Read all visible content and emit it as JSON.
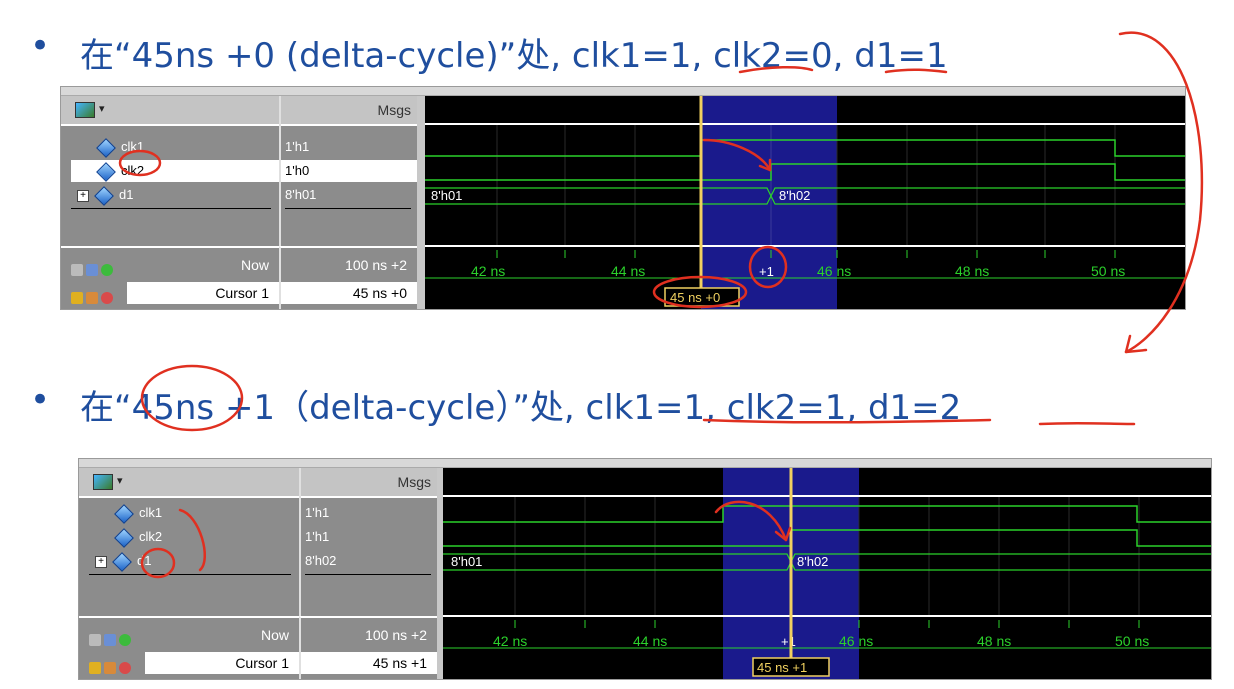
{
  "slide": {
    "bullet": "•",
    "caption1": "在“45ns +0 (delta-cycle)”处, clk1=1, clk2=0, d1=1",
    "caption2": "在“45ns +1（delta-cycle）”处, clk1=1, clk2=1, d1=2"
  },
  "panel1": {
    "header_msgs": "Msgs",
    "signals": [
      {
        "name": "clk1",
        "value": "1'h1"
      },
      {
        "name": "clk2",
        "value": "1'h0"
      },
      {
        "name": "d1",
        "value": "8'h01"
      }
    ],
    "now_label": "Now",
    "now_value": "100 ns +2",
    "cursor_label": "Cursor 1",
    "cursor_value": "45 ns +0",
    "bus_before": "8'h01",
    "bus_after": "8'h02",
    "ticks": [
      "42 ns",
      "44 ns",
      "46 ns",
      "48 ns",
      "50 ns"
    ],
    "cursor_flag": "45 ns +0",
    "delta_mark": "+1"
  },
  "panel2": {
    "header_msgs": "Msgs",
    "signals": [
      {
        "name": "clk1",
        "value": "1'h1"
      },
      {
        "name": "clk2",
        "value": "1'h1"
      },
      {
        "name": "d1",
        "value": "8'h02"
      }
    ],
    "now_label": "Now",
    "now_value": "100 ns +2",
    "cursor_label": "Cursor 1",
    "cursor_value": "45 ns +1",
    "bus_before": "8'h01",
    "bus_after": "8'h02",
    "ticks": [
      "42 ns",
      "44 ns",
      "46 ns",
      "48 ns",
      "50 ns"
    ],
    "cursor_flag": "45 ns +1",
    "delta_mark": "+1"
  },
  "colors": {
    "caption": "#1f4e9e",
    "wave": "#2bd12b",
    "highlight": "#1a1a8c",
    "cursor": "#f0d060",
    "annotation": "#e03020"
  }
}
